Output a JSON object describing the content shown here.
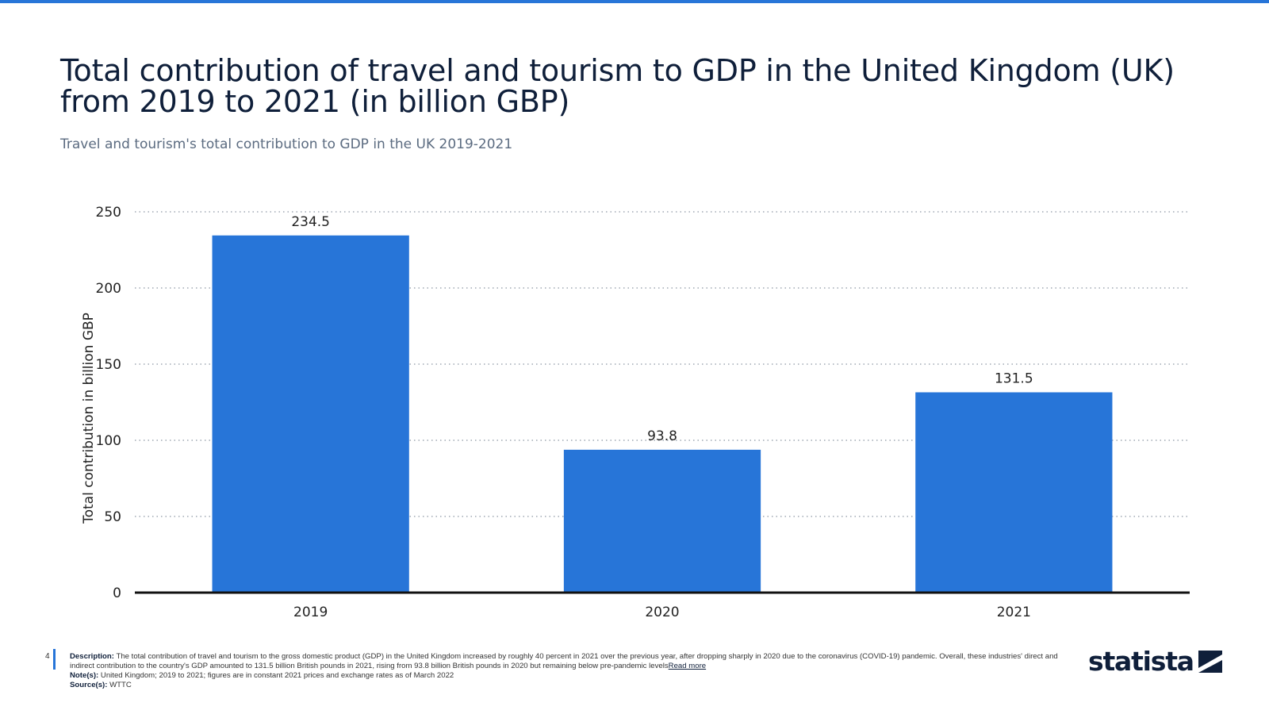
{
  "header": {
    "title": "Total contribution of travel and tourism to GDP in the United Kingdom (UK) from 2019 to 2021 (in billion GBP)",
    "subtitle": "Travel and tourism's total contribution to GDP in the UK 2019-2021"
  },
  "chart_data": {
    "type": "bar",
    "categories": [
      "2019",
      "2020",
      "2021"
    ],
    "values": [
      234.5,
      93.8,
      131.5
    ],
    "data_labels": [
      "234.5",
      "93.8",
      "131.5"
    ],
    "ylabel": "Total contribution in billion GBP",
    "xlabel": "",
    "ylim": [
      0,
      250
    ],
    "yticks": [
      0,
      50,
      100,
      150,
      200,
      250
    ],
    "grid": true,
    "bar_color": "#2775d8"
  },
  "footer": {
    "page_number": "4",
    "description_label": "Description:",
    "description_text": " The total contribution of travel and tourism to the gross domestic product (GDP) in the United Kingdom increased by roughly 40 percent in 2021 over the previous year, after dropping sharply in 2020 due to the coronavirus (COVID-19) pandemic. Overall, these industries' direct and indirect contribution to the country's GDP amounted to 131.5 billion British pounds in 2021, rising from 93.8 billion British pounds in 2020 but remaining below pre-pandemic levels",
    "read_more": "Read more",
    "note_label": "Note(s):",
    "note_text": " United Kingdom; 2019 to 2021; figures are in constant 2021 prices and exchange rates as of March 2022",
    "source_label": "Source(s):",
    "source_text": " WTTC"
  },
  "brand": {
    "name": "statista",
    "logo_icon": "statista-logo-icon",
    "accent_color": "#2775d8"
  }
}
